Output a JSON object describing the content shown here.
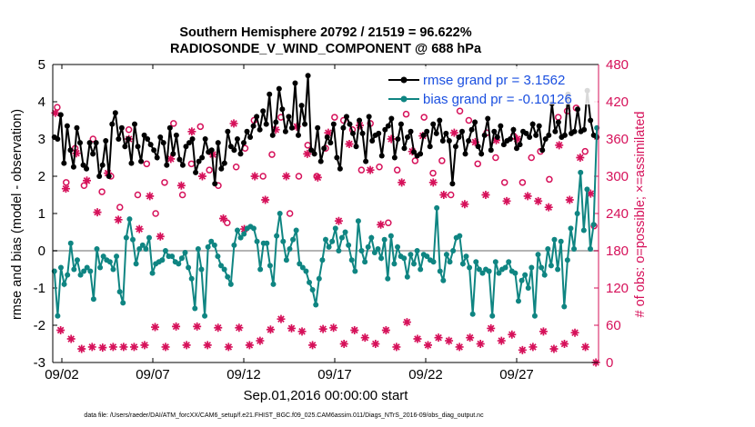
{
  "chart_data": {
    "type": "line",
    "title_line1": "Southern Hemisphere 20792 / 21519 = 96.622%",
    "title_line2": "RADIOSONDE_V_WIND_COMPONENT @ 688 hPa",
    "xlabel": "Sep.01,2016 00:00:00 start",
    "ylabel_left": "rmse and bias (model - observation)",
    "ylabel_right": "# of obs: o=possible; ×=assimilated",
    "footer": "data file: /Users/raeder/DAI/ATM_forcXX/CAM6_setup/f.e21.FHIST_BGC.f09_025.CAM6assim.011/Diags_NTrS_2016-09/obs_diag_output.nc",
    "x_range_days": [
      0.5,
      30.5
    ],
    "x_ticks": [
      {
        "day": 1,
        "label": "09/02"
      },
      {
        "day": 6,
        "label": "09/07"
      },
      {
        "day": 11,
        "label": "09/12"
      },
      {
        "day": 16,
        "label": "09/17"
      },
      {
        "day": 21,
        "label": "09/22"
      },
      {
        "day": 26,
        "label": "09/27"
      }
    ],
    "ylim_left": [
      -3,
      5
    ],
    "yticks_left": [
      "-3",
      "-2",
      "-1",
      "0",
      "1",
      "2",
      "3",
      "4",
      "5"
    ],
    "ylim_right": [
      0,
      480
    ],
    "yticks_right": [
      "0",
      "60",
      "120",
      "180",
      "240",
      "300",
      "360",
      "420",
      "480"
    ],
    "legend": {
      "location": "top-right",
      "entries": [
        {
          "label": "rmse grand pr = 3.1562",
          "series": "rmse"
        },
        {
          "label": "bias grand pr = -0.10126",
          "series": "bias"
        }
      ]
    },
    "zero_line": 0,
    "x_step_days": 0.25,
    "colors": {
      "rmse": "#000000",
      "bias": "#0f8582",
      "obs": "#d6115a",
      "zero_line": "#b4b4b4",
      "legend_text": "#1a4fe0",
      "axis": "#000000"
    },
    "series": [
      {
        "name": "rmse",
        "axis": "left",
        "values": [
          3.05,
          3.0,
          3.65,
          2.35,
          3.35,
          2.7,
          2.25,
          3.3,
          2.9,
          2.3,
          2.2,
          2.9,
          2.6,
          2.9,
          2.0,
          2.3,
          2.95,
          2.0,
          3.4,
          3.7,
          3.0,
          3.3,
          2.8,
          3.0,
          2.35,
          3.4,
          2.8,
          2.4,
          3.1,
          3.0,
          2.85,
          2.7,
          2.5,
          3.05,
          2.9,
          2.3,
          3.3,
          2.6,
          3.1,
          2.45,
          2.3,
          2.8,
          2.9,
          3.0,
          2.1,
          2.4,
          2.5,
          3.0,
          2.65,
          2.7,
          1.8,
          2.9,
          2.2,
          2.35,
          3.2,
          2.8,
          2.7,
          3.0,
          2.6,
          2.9,
          3.2,
          3.05,
          3.35,
          3.6,
          3.25,
          3.75,
          3.4,
          4.2,
          3.1,
          3.45,
          4.35,
          3.8,
          3.2,
          3.6,
          3.3,
          4.5,
          3.1,
          3.9,
          3.4,
          4.7,
          2.7,
          2.6,
          3.3,
          2.4,
          2.75,
          3.05,
          2.9,
          3.4,
          2.5,
          2.2,
          3.3,
          3.6,
          3.4,
          3.15,
          2.8,
          3.5,
          3.15,
          2.4,
          3.6,
          2.95,
          3.1,
          3.15,
          2.55,
          3.25,
          3.35,
          3.55,
          2.5,
          3.0,
          3.4,
          2.75,
          3.05,
          3.2,
          2.65,
          2.55,
          2.6,
          3.1,
          3.2,
          2.8,
          3.4,
          3.15,
          3.5,
          2.95,
          3.15,
          2.95,
          1.8,
          2.8,
          3.05,
          3.2,
          2.6,
          2.95,
          3.25,
          3.45,
          2.8,
          2.6,
          3.1,
          3.55,
          2.7,
          3.2,
          3.05,
          3.35,
          2.85,
          2.95,
          3.0,
          3.25,
          2.75,
          2.85,
          3.2,
          3.15,
          3.05,
          3.4,
          3.1,
          3.35,
          2.7,
          3.0,
          3.1,
          3.95,
          3.2,
          3.45,
          3.05,
          3.1,
          4.2,
          3.15,
          3.2,
          3.8,
          3.2,
          3.25,
          4.3,
          3.5,
          3.1,
          3.05
        ]
      },
      {
        "name": "bias",
        "axis": "left",
        "values": [
          -0.55,
          -1.75,
          -0.45,
          -0.9,
          -0.65,
          0.2,
          -0.5,
          -0.25,
          -0.65,
          -0.55,
          -0.45,
          -0.55,
          -1.3,
          0.05,
          -0.45,
          -0.15,
          -0.25,
          -0.3,
          -0.5,
          -0.15,
          -1.1,
          -1.4,
          0.35,
          0.85,
          0.3,
          -0.35,
          0.05,
          0.15,
          0.05,
          0.35,
          -0.6,
          -0.35,
          -0.3,
          -0.25,
          0.0,
          -0.15,
          -0.15,
          -0.3,
          -0.35,
          -0.2,
          -0.05,
          -0.45,
          -0.75,
          -1.55,
          0.05,
          -0.5,
          -1.75,
          0.1,
          0.25,
          0.15,
          -0.15,
          -0.4,
          -0.5,
          -0.7,
          -0.9,
          0.15,
          0.55,
          0.35,
          0.45,
          0.6,
          0.65,
          0.6,
          0.25,
          -0.5,
          0.2,
          0.2,
          -0.4,
          -0.9,
          0.4,
          1.0,
          0.25,
          -0.25,
          0.05,
          0.3,
          0.55,
          -0.35,
          -0.45,
          -0.55,
          -0.85,
          -1.05,
          -1.45,
          -0.75,
          -0.25,
          0.3,
          0.1,
          0.25,
          0.6,
          0.0,
          0.35,
          0.5,
          0.15,
          -0.25,
          -0.55,
          0.8,
          0.0,
          -0.3,
          0.1,
          0.35,
          -0.05,
          0.05,
          -0.2,
          0.3,
          -0.75,
          0.4,
          -0.35,
          0.1,
          -0.15,
          -0.2,
          -0.7,
          -0.1,
          -0.35,
          0.0,
          -0.5,
          -0.1,
          -0.15,
          -0.25,
          -0.3,
          1.15,
          -0.55,
          -0.8,
          -0.1,
          -0.3,
          0.0,
          0.35,
          0.4,
          -0.35,
          -0.15,
          -0.45,
          -1.7,
          -0.3,
          -0.5,
          -0.6,
          -0.5,
          -0.55,
          -1.75,
          -0.3,
          -0.6,
          -0.5,
          -0.45,
          -0.3,
          -0.55,
          -0.6,
          -1.35,
          -0.8,
          -0.65,
          -1.0,
          -0.45,
          -1.75,
          -0.1,
          -0.45,
          -0.65,
          0.05,
          -0.4,
          0.3,
          -0.5,
          0.25,
          -1.5,
          -0.25,
          0.6,
          0.05,
          1.0,
          2.1,
          0.55,
          1.65,
          0.05,
          0.7,
          3.3
        ]
      },
      {
        "name": "obs possible",
        "axis": "right",
        "marker": "circle",
        "values": [
          411,
          290,
          345,
          285,
          360,
          275,
          300,
          250,
          375,
          270,
          320,
          240,
          290,
          385,
          270,
          320,
          380,
          310,
          285,
          225,
          315,
          345,
          390,
          300,
          335,
          395,
          240,
          300,
          350,
          300,
          345,
          395,
          390,
          375,
          310,
          385,
          315,
          225,
          310,
          400,
          325,
          395,
          305,
          325,
          270,
          405,
          390,
          320,
          370,
          330,
          290,
          365,
          290,
          330,
          340,
          295,
          395,
          405,
          410,
          340,
          220
        ]
      },
      {
        "name": "obs assimilated",
        "axis": "right",
        "marker": "star",
        "values": [
          402,
          52,
          280,
          38,
          337,
          22,
          293,
          25,
          242,
          24,
          305,
          25,
          230,
          25,
          360,
          25,
          215,
          28,
          268,
          57,
          203,
          25,
          328,
          58,
          285,
          28,
          372,
          58,
          300,
          28,
          335,
          56,
          232,
          25,
          385,
          56,
          215,
          28,
          300,
          35,
          262,
          53,
          375,
          70,
          300,
          55,
          380,
          50,
          336,
          28,
          298,
          54,
          370,
          56,
          228,
          30,
          352,
          52,
          382,
          40,
          310,
          30,
          222,
          52,
          360,
          25,
          290,
          65,
          340,
          38,
          365,
          28,
          290,
          40,
          270,
          35,
          370,
          25,
          255,
          40,
          355,
          30,
          270,
          55,
          358,
          35,
          260,
          45,
          360,
          20,
          268,
          25,
          260,
          50,
          250,
          22,
          350,
          30,
          262,
          48,
          330,
          25,
          272,
          0
        ]
      }
    ]
  }
}
